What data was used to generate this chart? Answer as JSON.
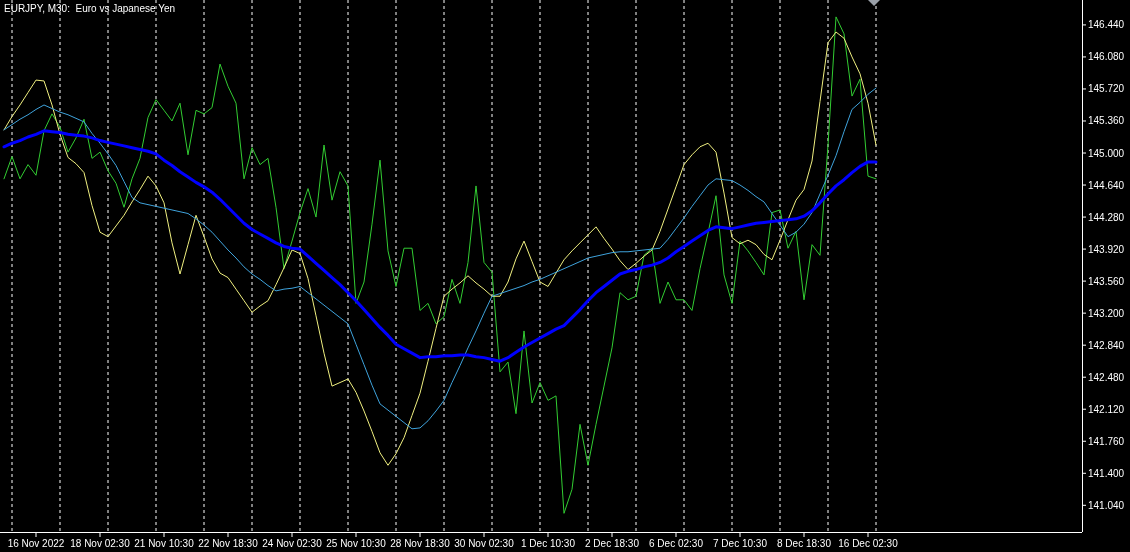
{
  "chart_data": {
    "type": "line",
    "title": "EURJPY, M30:  Euro vs Japanese Yen",
    "categories": [
      null,
      null,
      null,
      null,
      "16 Nov 2022",
      null,
      null,
      null,
      null,
      null,
      null,
      null,
      "18 Nov 02:30",
      null,
      null,
      null,
      null,
      null,
      null,
      null,
      "21 Nov 10:30",
      null,
      null,
      null,
      null,
      null,
      null,
      null,
      "22 Nov 18:30",
      null,
      null,
      null,
      null,
      null,
      null,
      null,
      "24 Nov 02:30",
      null,
      null,
      null,
      null,
      null,
      null,
      null,
      "25 Nov 10:30",
      null,
      null,
      null,
      null,
      null,
      null,
      null,
      "28 Nov 18:30",
      null,
      null,
      null,
      null,
      null,
      null,
      null,
      "30 Nov 02:30",
      null,
      null,
      null,
      null,
      null,
      null,
      null,
      "1 Dec 10:30",
      null,
      null,
      null,
      null,
      null,
      null,
      null,
      "2 Dec 18:30",
      null,
      null,
      null,
      null,
      null,
      null,
      null,
      "6 Dec 02:30",
      null,
      null,
      null,
      null,
      null,
      null,
      null,
      "7 Dec 10:30",
      null,
      null,
      null,
      null,
      null,
      null,
      null,
      "8 Dec 18:30",
      null,
      null,
      null,
      null,
      null,
      null,
      null,
      "16 Dec 02:30",
      null,
      null,
      null,
      null,
      null,
      null,
      null,
      null,
      null,
      null,
      null,
      null,
      null,
      null,
      null,
      null,
      null,
      null,
      null,
      null,
      null,
      null,
      null,
      null,
      null,
      null
    ],
    "ylim": [
      140.74,
      146.72
    ],
    "yticks": [
      {
        "value": 141.04,
        "label": "141.040"
      },
      {
        "value": 141.4,
        "label": "141.400"
      },
      {
        "value": 141.76,
        "label": "141.760"
      },
      {
        "value": 142.12,
        "label": "142.120"
      },
      {
        "value": 142.48,
        "label": "142.480"
      },
      {
        "value": 142.84,
        "label": "142.840"
      },
      {
        "value": 143.2,
        "label": "143.200"
      },
      {
        "value": 143.56,
        "label": "143.560"
      },
      {
        "value": 143.92,
        "label": "143.920"
      },
      {
        "value": 144.28,
        "label": "144.280"
      },
      {
        "value": 144.64,
        "label": "144.640"
      },
      {
        "value": 145,
        "label": "145.000"
      },
      {
        "value": 145.36,
        "label": "145.360"
      },
      {
        "value": 145.72,
        "label": "145.720"
      },
      {
        "value": 146.08,
        "label": "146.080"
      },
      {
        "value": 146.44,
        "label": "146.440"
      }
    ],
    "grid": false,
    "marker": "none",
    "line_style": "solid",
    "series": [
      {
        "color": "#32cd32",
        "values": [
          144.71,
          144.96,
          144.71,
          144.87,
          144.75,
          145.25,
          145.44,
          145.29,
          145.01,
          145.17,
          145.38,
          144.94,
          145.01,
          144.8,
          144.66,
          144.39,
          144.71,
          144.94,
          145.4,
          145.6,
          145.48,
          145.36,
          145.56,
          144.98,
          145.48,
          145.44,
          145.51,
          146.0,
          145.75,
          145.56,
          144.71,
          145.06,
          144.87,
          144.94,
          144.39,
          143.7,
          144.01,
          144.33,
          144.6,
          144.28,
          145.09,
          144.47,
          144.79,
          144.63,
          143.31,
          143.55,
          144.2,
          144.92,
          143.9,
          143.5,
          143.93,
          143.93,
          143.23,
          143.31,
          143.08,
          143.16,
          143.58,
          143.31,
          143.77,
          144.63,
          143.77,
          143.66,
          142.54,
          142.65,
          142.07,
          143.0,
          142.19,
          142.42,
          142.22,
          142.27,
          140.95,
          141.22,
          141.95,
          141.49,
          141.95,
          142.38,
          142.81,
          143.43,
          143.35,
          143.39,
          143.85,
          143.93,
          143.31,
          143.55,
          143.35,
          143.35,
          143.23,
          143.7,
          144.1,
          144.52,
          143.63,
          143.31,
          144.01,
          143.9,
          143.77,
          143.63,
          144.33,
          144.36,
          143.93,
          144.12,
          143.35,
          143.97,
          143.85,
          145.09,
          146.53,
          146.34,
          145.64,
          145.83,
          144.74,
          144.71,
          null,
          null,
          null,
          null,
          null,
          null,
          null,
          null,
          null,
          null,
          null,
          null,
          null,
          null,
          null,
          null,
          null,
          null,
          null,
          null,
          null,
          null,
          null,
          null,
          null
        ]
      },
      {
        "color": "#f0f080",
        "values": [
          145.26,
          145.41,
          145.54,
          145.68,
          145.82,
          145.81,
          145.54,
          145.21,
          144.95,
          144.88,
          144.78,
          144.41,
          144.11,
          144.06,
          144.18,
          144.3,
          144.45,
          144.59,
          144.74,
          144.63,
          144.44,
          143.99,
          143.64,
          143.97,
          144.3,
          144.06,
          143.81,
          143.65,
          143.6,
          143.47,
          143.34,
          143.21,
          143.28,
          143.34,
          143.52,
          143.71,
          143.91,
          143.87,
          143.59,
          143.17,
          142.75,
          142.38,
          142.42,
          142.46,
          142.31,
          142.1,
          141.87,
          141.63,
          141.49,
          141.62,
          141.8,
          142.05,
          142.3,
          142.66,
          143.03,
          143.39,
          143.47,
          143.54,
          143.62,
          143.54,
          143.47,
          143.39,
          143.39,
          143.55,
          143.81,
          144.01,
          143.78,
          143.55,
          143.5,
          143.65,
          143.8,
          143.9,
          143.99,
          144.08,
          144.17,
          144.04,
          143.92,
          143.79,
          143.69,
          143.76,
          143.84,
          143.91,
          144.12,
          144.37,
          144.62,
          144.87,
          144.98,
          145.07,
          145.11,
          145.01,
          144.55,
          144.05,
          143.98,
          144.02,
          143.97,
          143.86,
          143.8,
          144.02,
          144.25,
          144.47,
          144.59,
          144.91,
          145.58,
          146.24,
          146.36,
          146.29,
          146.08,
          145.89,
          145.56,
          145.09,
          null,
          null,
          null,
          null,
          null,
          null,
          null,
          null,
          null,
          null,
          null,
          null,
          null,
          null,
          null,
          null,
          null,
          null,
          null,
          null,
          null,
          null,
          null,
          null,
          null
        ]
      },
      {
        "color": "#3fa3dc",
        "values": [
          145.26,
          145.32,
          145.38,
          145.43,
          145.49,
          145.54,
          145.5,
          145.46,
          145.43,
          145.39,
          145.35,
          145.22,
          145.11,
          144.99,
          144.86,
          144.68,
          144.5,
          144.44,
          144.42,
          144.4,
          144.38,
          144.36,
          144.34,
          144.32,
          144.26,
          144.19,
          144.11,
          144.01,
          143.91,
          143.82,
          143.72,
          143.64,
          143.58,
          143.51,
          143.45,
          143.47,
          143.48,
          143.5,
          143.43,
          143.36,
          143.29,
          143.22,
          143.15,
          143.08,
          142.85,
          142.62,
          142.39,
          142.18,
          142.11,
          142.04,
          141.97,
          141.9,
          141.91,
          141.99,
          142.1,
          142.22,
          142.42,
          142.61,
          142.81,
          143.0,
          143.2,
          143.39,
          143.42,
          143.45,
          143.48,
          143.51,
          143.55,
          143.58,
          143.62,
          143.66,
          143.7,
          143.74,
          143.78,
          143.82,
          143.84,
          143.86,
          143.88,
          143.89,
          143.89,
          143.9,
          143.91,
          143.92,
          143.93,
          144.03,
          144.15,
          144.27,
          144.4,
          144.52,
          144.64,
          144.71,
          144.7,
          144.69,
          144.64,
          144.58,
          144.51,
          144.45,
          144.32,
          144.19,
          144.06,
          144.11,
          144.2,
          144.33,
          144.54,
          144.75,
          144.97,
          145.24,
          145.49,
          145.57,
          145.66,
          145.73,
          null,
          null,
          null,
          null,
          null,
          null,
          null,
          null,
          null,
          null,
          null,
          null,
          null,
          null,
          null,
          null,
          null,
          null,
          null,
          null,
          null,
          null,
          null,
          null,
          null
        ]
      },
      {
        "color": "#0000ff",
        "values": [
          145.07,
          145.11,
          145.14,
          145.18,
          145.21,
          145.25,
          145.24,
          145.23,
          145.21,
          145.2,
          145.19,
          145.17,
          145.14,
          145.12,
          145.1,
          145.08,
          145.06,
          145.04,
          145.02,
          144.99,
          144.92,
          144.86,
          144.79,
          144.73,
          144.67,
          144.62,
          144.56,
          144.48,
          144.39,
          144.3,
          144.21,
          144.14,
          144.09,
          144.04,
          143.99,
          143.95,
          143.93,
          143.92,
          143.84,
          143.76,
          143.68,
          143.6,
          143.52,
          143.43,
          143.34,
          143.24,
          143.14,
          143.04,
          142.95,
          142.85,
          142.8,
          142.75,
          142.7,
          142.71,
          142.71,
          142.72,
          142.72,
          142.73,
          142.73,
          142.71,
          142.7,
          142.68,
          142.66,
          142.7,
          142.76,
          142.82,
          142.87,
          142.92,
          142.97,
          143.02,
          143.06,
          143.15,
          143.24,
          143.34,
          143.43,
          143.5,
          143.57,
          143.64,
          143.67,
          143.69,
          143.72,
          143.74,
          143.77,
          143.82,
          143.89,
          143.95,
          144.01,
          144.07,
          144.13,
          144.17,
          144.16,
          144.15,
          144.17,
          144.19,
          144.21,
          144.22,
          144.23,
          144.24,
          144.25,
          144.26,
          144.29,
          144.35,
          144.44,
          144.54,
          144.63,
          144.7,
          144.78,
          144.85,
          144.9,
          144.9,
          null,
          null,
          null,
          null,
          null,
          null,
          null,
          null,
          null,
          null,
          null,
          null,
          null,
          null,
          null,
          null,
          null,
          null,
          null,
          null,
          null,
          null,
          null,
          null,
          null
        ]
      }
    ]
  }
}
